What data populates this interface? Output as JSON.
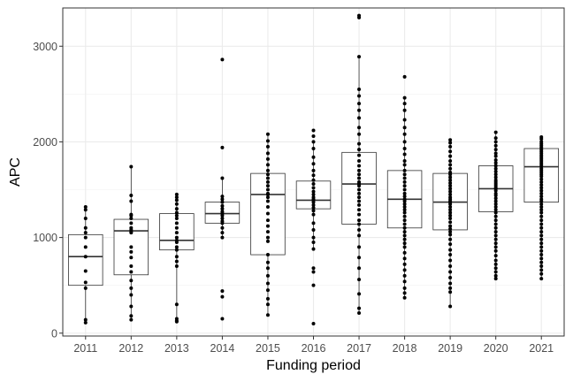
{
  "chart_data": {
    "type": "boxplot",
    "title": "",
    "xlabel": "Funding period",
    "ylabel": "APC",
    "ylim": [
      -30,
      3400
    ],
    "yticks": [
      0,
      1000,
      2000,
      3000
    ],
    "grid": true,
    "categories": [
      "2011",
      "2012",
      "2013",
      "2014",
      "2015",
      "2016",
      "2017",
      "2018",
      "2019",
      "2020",
      "2021"
    ],
    "boxes": [
      {
        "category": "2011",
        "q1": 500,
        "median": 800,
        "q3": 1030,
        "whisker_low": 110,
        "whisker_high": 1320
      },
      {
        "category": "2012",
        "q1": 610,
        "median": 1070,
        "q3": 1190,
        "whisker_low": 140,
        "whisker_high": 1740
      },
      {
        "category": "2013",
        "q1": 870,
        "median": 970,
        "q3": 1250,
        "whisker_low": 120,
        "whisker_high": 1450
      },
      {
        "category": "2014",
        "q1": 1150,
        "median": 1250,
        "q3": 1370,
        "whisker_low": 1000,
        "whisker_high": 1620
      },
      {
        "category": "2015",
        "q1": 820,
        "median": 1450,
        "q3": 1670,
        "whisker_low": 190,
        "whisker_high": 2080
      },
      {
        "category": "2016",
        "q1": 1300,
        "median": 1390,
        "q3": 1590,
        "whisker_low": 880,
        "whisker_high": 2000
      },
      {
        "category": "2017",
        "q1": 1140,
        "median": 1560,
        "q3": 1890,
        "whisker_low": 210,
        "whisker_high": 2890
      },
      {
        "category": "2018",
        "q1": 1100,
        "median": 1400,
        "q3": 1700,
        "whisker_low": 360,
        "whisker_high": 2450
      },
      {
        "category": "2019",
        "q1": 1080,
        "median": 1370,
        "q3": 1670,
        "whisker_low": 270,
        "whisker_high": 2020
      },
      {
        "category": "2020",
        "q1": 1270,
        "median": 1510,
        "q3": 1750,
        "whisker_low": 570,
        "whisker_high": 2100
      },
      {
        "category": "2021",
        "q1": 1370,
        "median": 1740,
        "q3": 1930,
        "whisker_low": 570,
        "whisker_high": 2050
      }
    ],
    "points": [
      {
        "category": "2011",
        "values": [
          1320,
          1290,
          1200,
          1100,
          1050,
          1000,
          900,
          800,
          650,
          530,
          470,
          140,
          110
        ]
      },
      {
        "category": "2012",
        "values": [
          1740,
          1440,
          1380,
          1240,
          1230,
          1200,
          1150,
          1100,
          1080,
          1060,
          1050,
          900,
          850,
          790,
          700,
          640,
          550,
          470,
          400,
          280,
          180,
          140
        ]
      },
      {
        "category": "2013",
        "values": [
          1450,
          1420,
          1390,
          1350,
          1300,
          1260,
          1230,
          1200,
          1150,
          1100,
          1050,
          1000,
          970,
          950,
          900,
          870,
          800,
          750,
          700,
          300,
          150,
          130,
          120
        ]
      },
      {
        "category": "2014",
        "values": [
          2860,
          1940,
          1620,
          1430,
          1400,
          1370,
          1330,
          1300,
          1270,
          1250,
          1230,
          1200,
          1170,
          1150,
          1100,
          1050,
          1000,
          440,
          380,
          150
        ]
      },
      {
        "category": "2015",
        "values": [
          2080,
          2010,
          1950,
          1880,
          1820,
          1760,
          1700,
          1660,
          1620,
          1580,
          1540,
          1500,
          1460,
          1450,
          1420,
          1380,
          1320,
          1250,
          1180,
          1120,
          1060,
          1000,
          960,
          820,
          740,
          680,
          600,
          520,
          450,
          360,
          300,
          190
        ]
      },
      {
        "category": "2016",
        "values": [
          2120,
          2060,
          2000,
          1930,
          1840,
          1770,
          1700,
          1650,
          1600,
          1560,
          1520,
          1480,
          1450,
          1420,
          1400,
          1390,
          1370,
          1340,
          1310,
          1280,
          1240,
          1150,
          1080,
          1000,
          950,
          880,
          680,
          640,
          500,
          100
        ]
      },
      {
        "category": "2017",
        "values": [
          3320,
          3300,
          2890,
          2550,
          2480,
          2400,
          2330,
          2250,
          2150,
          2080,
          1980,
          1920,
          1860,
          1800,
          1750,
          1700,
          1660,
          1620,
          1580,
          1560,
          1540,
          1500,
          1460,
          1420,
          1380,
          1340,
          1290,
          1240,
          1180,
          1140,
          1080,
          1020,
          900,
          790,
          680,
          560,
          410,
          260,
          210
        ]
      },
      {
        "category": "2018",
        "values": [
          2680,
          2460,
          2400,
          2330,
          2230,
          2150,
          2080,
          2000,
          1930,
          1870,
          1800,
          1760,
          1700,
          1660,
          1620,
          1580,
          1540,
          1500,
          1460,
          1430,
          1400,
          1380,
          1350,
          1320,
          1290,
          1260,
          1220,
          1180,
          1140,
          1100,
          1060,
          1020,
          980,
          940,
          900,
          840,
          780,
          720,
          660,
          600,
          540,
          470,
          420,
          370
        ]
      },
      {
        "category": "2019",
        "values": [
          2020,
          1990,
          1950,
          1900,
          1850,
          1800,
          1760,
          1720,
          1680,
          1660,
          1630,
          1600,
          1570,
          1540,
          1510,
          1480,
          1450,
          1420,
          1400,
          1380,
          1370,
          1350,
          1320,
          1290,
          1260,
          1230,
          1200,
          1160,
          1120,
          1090,
          1060,
          1030,
          980,
          930,
          870,
          820,
          760,
          700,
          640,
          580,
          520,
          470,
          430,
          280
        ]
      },
      {
        "category": "2020",
        "values": [
          2100,
          2040,
          2000,
          1960,
          1920,
          1880,
          1850,
          1810,
          1780,
          1750,
          1720,
          1690,
          1660,
          1630,
          1600,
          1580,
          1560,
          1540,
          1520,
          1510,
          1490,
          1460,
          1440,
          1410,
          1380,
          1350,
          1320,
          1290,
          1260,
          1220,
          1180,
          1140,
          1100,
          1060,
          1020,
          980,
          940,
          900,
          860,
          810,
          760,
          720,
          680,
          640,
          600,
          570
        ]
      },
      {
        "category": "2021",
        "values": [
          2050,
          2030,
          2000,
          1980,
          1960,
          1940,
          1920,
          1900,
          1880,
          1860,
          1840,
          1820,
          1800,
          1780,
          1760,
          1740,
          1720,
          1700,
          1680,
          1660,
          1640,
          1610,
          1580,
          1550,
          1520,
          1490,
          1460,
          1430,
          1400,
          1380,
          1350,
          1320,
          1290,
          1260,
          1220,
          1180,
          1140,
          1100,
          1060,
          1020,
          980,
          940,
          900,
          860,
          820,
          780,
          740,
          700,
          660,
          620,
          570
        ]
      }
    ]
  }
}
